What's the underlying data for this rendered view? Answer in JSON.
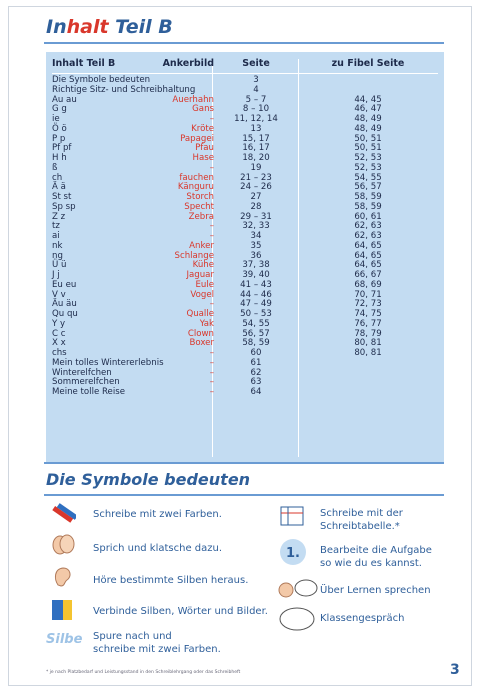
{
  "title": {
    "part1": "In",
    "part2": "halt",
    "part3": " Teil B"
  },
  "table": {
    "headers": {
      "c1": "Inhalt Teil B",
      "c2": "Ankerbild",
      "c3": "Seite",
      "c4": "zu Fibel Seite"
    },
    "rows": [
      {
        "c1": "Die Symbole bedeuten",
        "c2": "",
        "c3": "3",
        "c4": "",
        "wide": true
      },
      {
        "c1": "Richtige Sitz- und Schreibhaltung",
        "c2": "",
        "c3": "4",
        "c4": "",
        "wide": true
      },
      {
        "c1": "Au au",
        "c2": "Auerhahn",
        "c3": "5 – 7",
        "c4": "44, 45"
      },
      {
        "c1": "G g",
        "c2": "Gans",
        "c3": "8 – 10",
        "c4": "46, 47"
      },
      {
        "c1": "ie",
        "c2": "–",
        "c3": "11, 12, 14",
        "c4": "48, 49"
      },
      {
        "c1": "Ö ö",
        "c2": "Kröte",
        "c3": "13",
        "c4": "48, 49"
      },
      {
        "c1": "P p",
        "c2": "Papagei",
        "c3": "15, 17",
        "c4": "50, 51"
      },
      {
        "c1": "Pf pf",
        "c2": "Pfau",
        "c3": "16, 17",
        "c4": "50, 51"
      },
      {
        "c1": "H h",
        "c2": "Hase",
        "c3": "18, 20",
        "c4": "52, 53"
      },
      {
        "c1": "ß",
        "c2": "–",
        "c3": "19",
        "c4": "52, 53"
      },
      {
        "c1": "ch",
        "c2": "fauchen",
        "c3": "21 – 23",
        "c4": "54, 55"
      },
      {
        "c1": "Ä ä",
        "c2": "Känguru",
        "c3": "24 – 26",
        "c4": "56, 57"
      },
      {
        "c1": "St st",
        "c2": "Storch",
        "c3": "27",
        "c4": "58, 59"
      },
      {
        "c1": "Sp sp",
        "c2": "Specht",
        "c3": "28",
        "c4": "58, 59"
      },
      {
        "c1": "Z z",
        "c2": "Zebra",
        "c3": "29 – 31",
        "c4": "60, 61"
      },
      {
        "c1": "tz",
        "c2": "–",
        "c3": "32, 33",
        "c4": "62, 63"
      },
      {
        "c1": "ai",
        "c2": "–",
        "c3": "34",
        "c4": "62, 63"
      },
      {
        "c1": "nk",
        "c2": "Anker",
        "c3": "35",
        "c4": "64, 65"
      },
      {
        "c1": "ng",
        "c2": "Schlange",
        "c3": "36",
        "c4": "64, 65"
      },
      {
        "c1": "Ü ü",
        "c2": "Kühe",
        "c3": "37, 38",
        "c4": "64, 65"
      },
      {
        "c1": "J j",
        "c2": "Jaguar",
        "c3": "39, 40",
        "c4": "66, 67"
      },
      {
        "c1": "Eu eu",
        "c2": "Eule",
        "c3": "41 – 43",
        "c4": "68, 69"
      },
      {
        "c1": "V v",
        "c2": "Vogel",
        "c3": "44 – 46",
        "c4": "70, 71"
      },
      {
        "c1": "Äu äu",
        "c2": "–",
        "c3": "47 – 49",
        "c4": "72, 73"
      },
      {
        "c1": "Qu qu",
        "c2": "Qualle",
        "c3": "50 – 53",
        "c4": "74, 75"
      },
      {
        "c1": "Y y",
        "c2": "Yak",
        "c3": "54, 55",
        "c4": "76, 77"
      },
      {
        "c1": "C c",
        "c2": "Clown",
        "c3": "56, 57",
        "c4": "78, 79"
      },
      {
        "c1": "X x",
        "c2": "Boxer",
        "c3": "58, 59",
        "c4": "80, 81"
      },
      {
        "c1": "chs",
        "c2": "–",
        "c3": "60",
        "c4": "80, 81"
      },
      {
        "c1": "Mein tolles Winterer­lebnis",
        "c2": "–",
        "c3": "61",
        "c4": ""
      },
      {
        "c1": "Winterelfchen",
        "c2": "–",
        "c3": "62",
        "c4": ""
      },
      {
        "c1": "Sommerelfchen",
        "c2": "–",
        "c3": "63",
        "c4": ""
      },
      {
        "c1": "Meine tolle Reise",
        "c2": "–",
        "c3": "64",
        "c4": ""
      }
    ]
  },
  "symbols_title": "Die Symbole bedeuten",
  "symbols": {
    "s1": "Schreibe mit zwei Farben.",
    "s2": "Sprich und klatsche dazu.",
    "s3": "Höre bestimmte Silben heraus.",
    "s4": "Verbinde Silben, Wörter und Bilder.",
    "s5a": "Spure nach und",
    "s5b": "schreibe mit zwei Farben.",
    "s6a": "Schreibe mit der",
    "s6b": "Schreibtabelle.*",
    "s7a": "Bearbeite die Aufgabe",
    "s7b": "so wie du es kannst.",
    "s8": "Über Lernen sprechen",
    "s9": "Klassengespräch",
    "num_icon": "1.",
    "silbe_icon": "Silbe"
  },
  "footnote": "* je nach Platzbedarf und Leistungsstand in den Schreiblehrgang oder das Schreibheft",
  "page_number": "3",
  "colors": {
    "blue": "#2f5f9a",
    "red": "#d9372b",
    "panel": "#c3dcf2"
  }
}
